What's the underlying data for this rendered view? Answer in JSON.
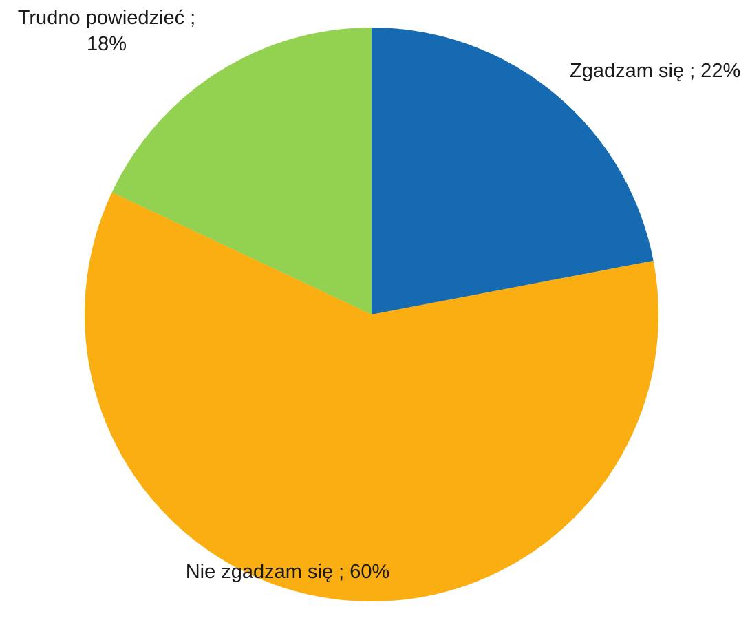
{
  "chart_data": {
    "type": "pie",
    "slices": [
      {
        "label": "Zgadzam się",
        "value": 22,
        "value_label": "22%",
        "color": "#156AB1"
      },
      {
        "label": "Nie zgadzam się",
        "value": 60,
        "value_label": "60%",
        "color": "#FBAE12"
      },
      {
        "label": "Trudno powiedzieć",
        "value": 18,
        "value_label": "18%",
        "color": "#93D150"
      }
    ],
    "data_labels": [
      {
        "lines": [
          "Zgadzam się ; 22%"
        ]
      },
      {
        "lines": [
          "Nie zgadzam się ; 60%"
        ]
      },
      {
        "lines": [
          "Trudno powiedzieć ;",
          "18%"
        ]
      }
    ],
    "start_angle_deg": 0,
    "direction": "clockwise",
    "legend": "none"
  }
}
